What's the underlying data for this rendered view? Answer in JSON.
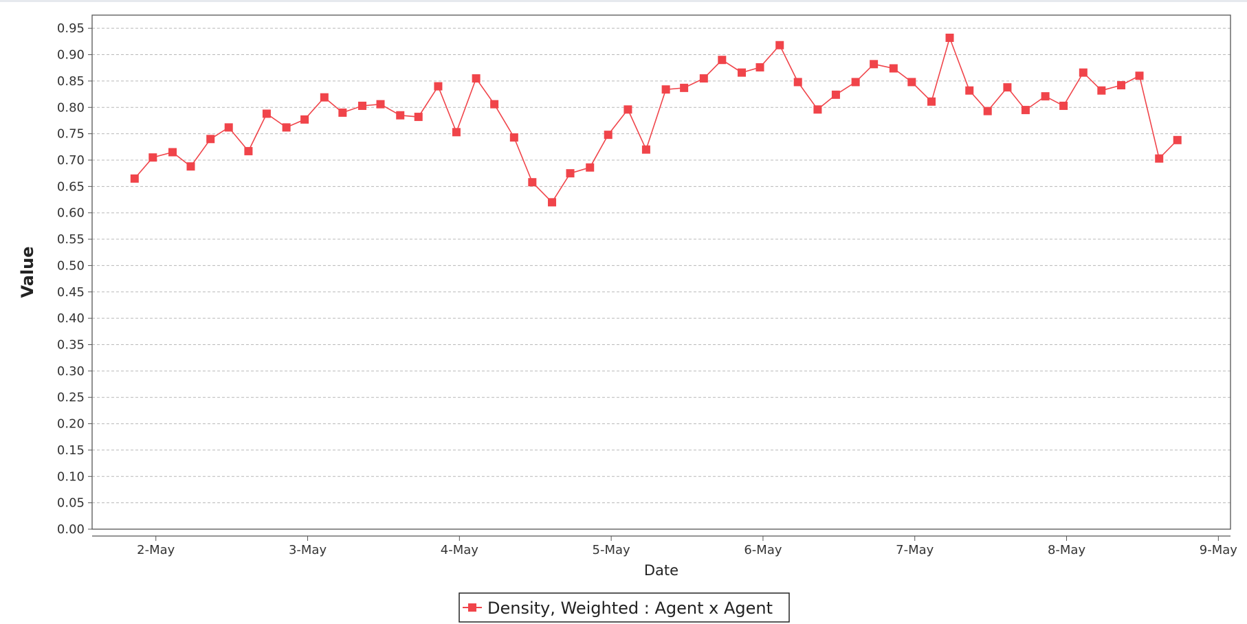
{
  "chart_data": {
    "type": "line",
    "xlabel": "Date",
    "ylabel": "Value",
    "ylim": [
      0,
      0.975
    ],
    "y_ticks": [
      0.0,
      0.05,
      0.1,
      0.15,
      0.2,
      0.25,
      0.3,
      0.35,
      0.4,
      0.45,
      0.5,
      0.55,
      0.6,
      0.65,
      0.7,
      0.75,
      0.8,
      0.85,
      0.9,
      0.95
    ],
    "y_tick_labels": [
      "0.00",
      "0.05",
      "0.10",
      "0.15",
      "0.20",
      "0.25",
      "0.30",
      "0.35",
      "0.40",
      "0.45",
      "0.50",
      "0.55",
      "0.60",
      "0.65",
      "0.70",
      "0.75",
      "0.80",
      "0.85",
      "0.90",
      "0.95"
    ],
    "x_tick_labels": [
      "2-May",
      "3-May",
      "4-May",
      "5-May",
      "6-May",
      "7-May",
      "8-May",
      "9-May"
    ],
    "x_ticks_day": [
      2,
      3,
      4,
      5,
      6,
      7,
      8,
      9
    ],
    "xlim_day": [
      1.58,
      9.08
    ],
    "grid": true,
    "grid_axis": "y",
    "legend_position": "bottom-center",
    "colors": {
      "series": "#f0444a",
      "marker": "#f0444a",
      "grid": "#b8b8b8",
      "axis": "#555555"
    },
    "series": [
      {
        "name": "Density, Weighted : Agent x Agent",
        "marker": "square",
        "x": [
          1.86,
          1.98,
          2.11,
          2.23,
          2.36,
          2.48,
          2.61,
          2.73,
          2.86,
          2.98,
          3.11,
          3.23,
          3.36,
          3.48,
          3.61,
          3.73,
          3.86,
          3.98,
          4.11,
          4.23,
          4.36,
          4.48,
          4.61,
          4.73,
          4.86,
          4.98,
          5.11,
          5.23,
          5.36,
          5.48,
          5.61,
          5.73,
          5.86,
          5.98,
          6.11,
          6.23,
          6.36,
          6.48,
          6.61,
          6.73,
          6.86,
          6.98,
          7.11,
          7.23,
          7.36,
          7.48,
          7.61,
          7.73,
          7.86,
          7.98,
          8.11,
          8.23,
          8.36,
          8.48,
          8.61,
          8.73
        ],
        "values": [
          0.665,
          0.705,
          0.715,
          0.688,
          0.74,
          0.762,
          0.717,
          0.788,
          0.762,
          0.777,
          0.819,
          0.79,
          0.803,
          0.806,
          0.785,
          0.782,
          0.84,
          0.753,
          0.855,
          0.806,
          0.743,
          0.658,
          0.62,
          0.675,
          0.686,
          0.748,
          0.796,
          0.72,
          0.834,
          0.837,
          0.855,
          0.89,
          0.866,
          0.876,
          0.918,
          0.848,
          0.796,
          0.824,
          0.848,
          0.882,
          0.874,
          0.848,
          0.811,
          0.932,
          0.832,
          0.793,
          0.838,
          0.795,
          0.821,
          0.803,
          0.866,
          0.832,
          0.842,
          0.86,
          0.703,
          0.738
        ]
      }
    ]
  }
}
